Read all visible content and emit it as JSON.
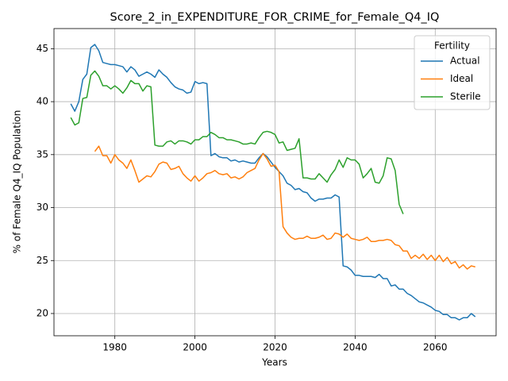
{
  "chart_data": {
    "type": "line",
    "title": "Score_2_in_EXPENDITURE_FOR_CRIME_for_Female_Q4_IQ",
    "x_label": "Years",
    "y_label": "% of Female Q4_IQ Population",
    "legend_title": "Fertility",
    "legend_position": "upper right",
    "grid": true,
    "xlim": [
      1964.8,
      2075.2
    ],
    "ylim": [
      17.9,
      46.9
    ],
    "xticks": [
      1980,
      2000,
      2020,
      2040,
      2060
    ],
    "yticks": [
      20,
      25,
      30,
      35,
      40,
      45
    ],
    "x": [
      1969,
      1970,
      1971,
      1972,
      1973,
      1974,
      1975,
      1976,
      1977,
      1978,
      1979,
      1980,
      1981,
      1982,
      1983,
      1984,
      1985,
      1986,
      1987,
      1988,
      1989,
      1990,
      1991,
      1992,
      1993,
      1994,
      1995,
      1996,
      1997,
      1998,
      1999,
      2000,
      2001,
      2002,
      2003,
      2004,
      2005,
      2006,
      2007,
      2008,
      2009,
      2010,
      2011,
      2012,
      2013,
      2014,
      2015,
      2016,
      2017,
      2018,
      2019,
      2020,
      2021,
      2022,
      2023,
      2024,
      2025,
      2026,
      2027,
      2028,
      2029,
      2030,
      2031,
      2032,
      2033,
      2034,
      2035,
      2036,
      2037,
      2038,
      2039,
      2040,
      2041,
      2042,
      2043,
      2044,
      2045,
      2046,
      2047,
      2048,
      2049,
      2050,
      2051,
      2052,
      2053,
      2054,
      2055,
      2056,
      2057,
      2058,
      2059,
      2060,
      2061,
      2062,
      2063,
      2064,
      2065,
      2066,
      2067,
      2068,
      2069,
      2070
    ],
    "series": [
      {
        "name": "Actual",
        "color": "#1f77b4",
        "values": [
          39.8,
          39.1,
          40.0,
          42.1,
          42.6,
          45.1,
          45.4,
          44.8,
          43.7,
          43.6,
          43.5,
          43.5,
          43.4,
          43.3,
          42.8,
          43.3,
          43.0,
          42.4,
          42.6,
          42.8,
          42.6,
          42.3,
          43.0,
          42.6,
          42.3,
          41.8,
          41.4,
          41.2,
          41.1,
          40.8,
          40.9,
          41.9,
          41.7,
          41.8,
          41.7,
          34.9,
          35.1,
          34.8,
          34.7,
          34.7,
          34.4,
          34.5,
          34.3,
          34.4,
          34.3,
          34.2,
          34.2,
          34.7,
          35.1,
          34.8,
          34.3,
          33.8,
          33.4,
          33.0,
          32.3,
          32.1,
          31.7,
          31.8,
          31.5,
          31.4,
          30.9,
          30.6,
          30.8,
          30.8,
          30.9,
          30.9,
          31.2,
          31.0,
          24.5,
          24.4,
          24.1,
          23.6,
          23.6,
          23.5,
          23.5,
          23.5,
          23.4,
          23.7,
          23.3,
          23.3,
          22.6,
          22.7,
          22.3,
          22.3,
          21.9,
          21.7,
          21.4,
          21.1,
          21.0,
          20.8,
          20.6,
          20.3,
          20.2,
          19.9,
          19.9,
          19.6,
          19.6,
          19.4,
          19.6,
          19.6,
          20.0,
          19.7
        ]
      },
      {
        "name": "Ideal",
        "color": "#ff7f0e",
        "values": [
          null,
          null,
          null,
          null,
          null,
          null,
          35.3,
          35.8,
          34.9,
          34.9,
          34.2,
          35.0,
          34.5,
          34.2,
          33.7,
          34.5,
          33.5,
          32.4,
          32.7,
          33.0,
          32.9,
          33.4,
          34.1,
          34.3,
          34.2,
          33.6,
          33.7,
          33.9,
          33.2,
          32.8,
          32.5,
          33.0,
          32.5,
          32.8,
          33.2,
          33.3,
          33.5,
          33.2,
          33.1,
          33.2,
          32.8,
          32.9,
          32.7,
          32.9,
          33.3,
          33.5,
          33.7,
          34.5,
          35.1,
          34.6,
          33.9,
          34.0,
          33.4,
          28.2,
          27.6,
          27.2,
          27.0,
          27.1,
          27.1,
          27.3,
          27.1,
          27.1,
          27.2,
          27.4,
          27.0,
          27.1,
          27.6,
          27.5,
          27.2,
          27.5,
          27.1,
          27.0,
          26.9,
          27.0,
          27.2,
          26.8,
          26.8,
          26.9,
          26.9,
          27.0,
          26.9,
          26.5,
          26.4,
          25.9,
          25.9,
          25.2,
          25.5,
          25.2,
          25.6,
          25.1,
          25.5,
          25.0,
          25.5,
          24.9,
          25.3,
          24.7,
          24.9,
          24.3,
          24.6,
          24.2,
          24.5,
          24.4
        ]
      },
      {
        "name": "Sterile",
        "color": "#2ca02c",
        "values": [
          38.5,
          37.8,
          38.0,
          40.3,
          40.4,
          42.5,
          42.9,
          42.4,
          41.5,
          41.5,
          41.2,
          41.5,
          41.2,
          40.8,
          41.3,
          42.0,
          41.7,
          41.7,
          41.0,
          41.5,
          41.4,
          35.9,
          35.8,
          35.8,
          36.2,
          36.3,
          36.0,
          36.3,
          36.3,
          36.2,
          36.0,
          36.4,
          36.4,
          36.7,
          36.7,
          37.1,
          36.9,
          36.6,
          36.6,
          36.4,
          36.4,
          36.3,
          36.2,
          36.0,
          36.0,
          36.1,
          36.0,
          36.6,
          37.1,
          37.2,
          37.1,
          36.9,
          36.1,
          36.2,
          35.4,
          35.5,
          35.6,
          36.5,
          32.8,
          32.8,
          32.7,
          32.7,
          33.2,
          32.8,
          32.4,
          33.1,
          33.6,
          34.5,
          33.8,
          34.7,
          34.5,
          34.5,
          34.1,
          32.8,
          33.2,
          33.7,
          32.4,
          32.3,
          33.0,
          34.7,
          34.6,
          33.5,
          30.3,
          29.4,
          null,
          null,
          null,
          null,
          null,
          null,
          null,
          null,
          null,
          null,
          null,
          null,
          null,
          null,
          null,
          null,
          null,
          null
        ]
      }
    ]
  }
}
